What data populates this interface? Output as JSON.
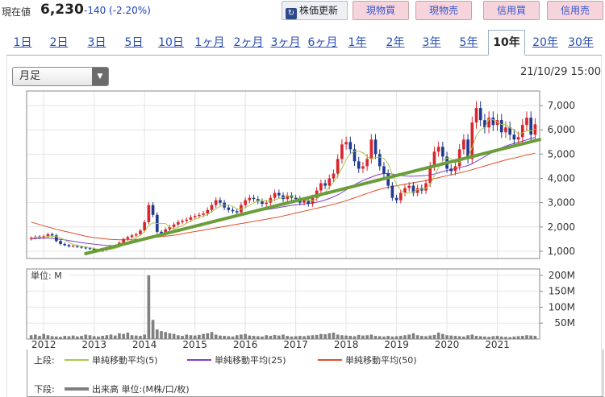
{
  "header": {
    "price_label": "現在値",
    "price_value": "6,230",
    "price_change": "-140 (-2.20%)",
    "refresh_label": "株価更新",
    "buttons": [
      "現物買",
      "現物売",
      "信用買",
      "信用売"
    ]
  },
  "tabs": [
    "1日",
    "2日",
    "3日",
    "5日",
    "10日",
    "1ヶ月",
    "2ヶ月",
    "3ヶ月",
    "6ヶ月",
    "1年",
    "2年",
    "3年",
    "5年",
    "10年",
    "20年",
    "30年"
  ],
  "active_tab": "10年",
  "period_select": "月足",
  "timestamp": "21/10/29 15:00",
  "colors": {
    "up": "#d8262e",
    "down": "#1f3a8f",
    "ma5": "#a8c84a",
    "ma25": "#7d3fc9",
    "ma50": "#e0502a",
    "trend": "#6a9e3a",
    "volume": "#808080"
  },
  "legend": {
    "upper_label": "上段:",
    "lower_label": "下段:",
    "ma5": "単純移動平均(5)",
    "ma25": "単純移動平均(25)",
    "ma50": "単純移動平均(50)",
    "volume": "出来高 単位:(M株/口/枚)"
  },
  "volume_unit_label": "単位: M",
  "chart_data": {
    "type": "candlestick",
    "x_labels": [
      "2012",
      "2013",
      "2014",
      "2015",
      "2016",
      "2017",
      "2018",
      "2019",
      "2020",
      "2021"
    ],
    "price_ticks": [
      "1,000",
      "2,000",
      "3,000",
      "4,000",
      "5,000",
      "6,000",
      "7,000"
    ],
    "price_range": [
      700,
      7600
    ],
    "volume_ticks": [
      "50M",
      "100M",
      "150M",
      "200M"
    ],
    "volume_range": [
      0,
      220
    ],
    "months_from": "2011-10",
    "closes": [
      1550,
      1600,
      1560,
      1620,
      1700,
      1650,
      1420,
      1300,
      1250,
      1200,
      1220,
      1180,
      1150,
      1120,
      1100,
      1050,
      1000,
      1050,
      1100,
      1180,
      1200,
      1350,
      1500,
      1580,
      1650,
      1700,
      1850,
      2200,
      2900,
      2500,
      1800,
      1700,
      1900,
      2000,
      2100,
      2200,
      2250,
      2300,
      2400,
      2450,
      2500,
      2550,
      2700,
      2900,
      3100,
      3000,
      2800,
      2700,
      2650,
      2600,
      2900,
      3100,
      3200,
      3150,
      3050,
      2950,
      3000,
      3200,
      3400,
      3300,
      3150,
      3300,
      3200,
      3150,
      3000,
      3100,
      2950,
      3200,
      3500,
      3800,
      3700,
      4000,
      4200,
      4800,
      5400,
      5500,
      5200,
      4700,
      4400,
      4500,
      4800,
      5600,
      5000,
      4500,
      4200,
      3700,
      3200,
      3100,
      3400,
      3600,
      3700,
      3400,
      3600,
      3500,
      3800,
      4500,
      5100,
      5300,
      4900,
      4400,
      4300,
      4500,
      5200,
      5600,
      4800,
      6300,
      6900,
      6400,
      6100,
      6500,
      6200,
      6400,
      5900,
      6100,
      5800,
      5600,
      5700,
      6200,
      6500,
      5800,
      6230
    ],
    "volumes": [
      12,
      14,
      10,
      16,
      12,
      9,
      8,
      7,
      10,
      9,
      11,
      8,
      10,
      14,
      12,
      9,
      8,
      10,
      12,
      14,
      11,
      18,
      16,
      20,
      12,
      11,
      10,
      14,
      200,
      60,
      30,
      25,
      22,
      18,
      16,
      12,
      10,
      14,
      12,
      11,
      13,
      16,
      18,
      22,
      14,
      11,
      10,
      9,
      8,
      12,
      14,
      16,
      11,
      10,
      9,
      8,
      12,
      10,
      13,
      11,
      14,
      10,
      8,
      9,
      10,
      9,
      11,
      12,
      13,
      16,
      15,
      18,
      20,
      14,
      12,
      11,
      10,
      9,
      13,
      11,
      12,
      14,
      10,
      9,
      8,
      10,
      8,
      9,
      10,
      12,
      14,
      18,
      12,
      10,
      9,
      11,
      13,
      20,
      16,
      12,
      11,
      10,
      9,
      8,
      12,
      14,
      10,
      9,
      8,
      7,
      9,
      10,
      8,
      7,
      6,
      8,
      9,
      10,
      12,
      11,
      10
    ],
    "ma5": [
      1550,
      1580,
      1570,
      1580,
      1610,
      1630,
      1600,
      1550,
      1460,
      1360,
      1280,
      1230,
      1200,
      1170,
      1150,
      1110,
      1080,
      1060,
      1060,
      1080,
      1110,
      1180,
      1270,
      1360,
      1460,
      1560,
      1660,
      1800,
      2060,
      2170,
      2140,
      2140,
      2140,
      2000,
      1900,
      1980,
      2050,
      2150,
      2250,
      2320,
      2380,
      2440,
      2520,
      2620,
      2750,
      2850,
      2900,
      2900,
      2850,
      2750,
      2730,
      2790,
      2890,
      2990,
      3080,
      3090,
      3070,
      3070,
      3120,
      3170,
      3210,
      3270,
      3270,
      3220,
      3160,
      3150,
      3080,
      3080,
      3150,
      3290,
      3430,
      3640,
      3840,
      4100,
      4420,
      4780,
      5020,
      5120,
      5120,
      5060,
      4900,
      4800,
      4860,
      4880,
      4820,
      4600,
      4140,
      3740,
      3520,
      3400,
      3400,
      3440,
      3540,
      3560,
      3600,
      3760,
      4100,
      4440,
      4720,
      4840,
      4800,
      4680,
      4660,
      4840,
      4880,
      5280,
      5760,
      6000,
      6100,
      6440,
      6420,
      6320,
      6220,
      6220,
      6080,
      6000,
      5820,
      5880,
      5960,
      5960,
      6040
    ],
    "ma25": [
      1500,
      1520,
      1530,
      1540,
      1540,
      1530,
      1510,
      1490,
      1470,
      1440,
      1410,
      1380,
      1350,
      1330,
      1310,
      1290,
      1270,
      1250,
      1240,
      1230,
      1230,
      1240,
      1260,
      1290,
      1330,
      1370,
      1420,
      1480,
      1560,
      1620,
      1660,
      1690,
      1720,
      1750,
      1780,
      1820,
      1860,
      1900,
      1950,
      2000,
      2040,
      2080,
      2130,
      2180,
      2240,
      2290,
      2340,
      2380,
      2420,
      2460,
      2500,
      2540,
      2580,
      2620,
      2660,
      2690,
      2710,
      2740,
      2770,
      2800,
      2830,
      2860,
      2890,
      2910,
      2930,
      2950,
      2970,
      2990,
      3020,
      3060,
      3110,
      3170,
      3240,
      3320,
      3420,
      3530,
      3640,
      3740,
      3830,
      3910,
      3980,
      4050,
      4120,
      4170,
      4200,
      4200,
      4180,
      4150,
      4120,
      4100,
      4090,
      4090,
      4100,
      4110,
      4120,
      4140,
      4180,
      4230,
      4280,
      4330,
      4370,
      4400,
      4440,
      4490,
      4530,
      4600,
      4700,
      4800,
      4900,
      5000,
      5090,
      5180,
      5260,
      5330,
      5390,
      5440,
      5490,
      5540,
      5590,
      5640,
      5690
    ],
    "ma50": [
      2200,
      2150,
      2100,
      2050,
      2000,
      1950,
      1900,
      1860,
      1820,
      1780,
      1740,
      1700,
      1660,
      1620,
      1590,
      1560,
      1540,
      1520,
      1500,
      1490,
      1480,
      1470,
      1470,
      1470,
      1480,
      1490,
      1500,
      1520,
      1540,
      1560,
      1580,
      1600,
      1620,
      1640,
      1660,
      1690,
      1720,
      1750,
      1780,
      1810,
      1840,
      1870,
      1900,
      1930,
      1960,
      1990,
      2020,
      2050,
      2080,
      2110,
      2140,
      2170,
      2200,
      2230,
      2260,
      2290,
      2320,
      2350,
      2380,
      2410,
      2450,
      2490,
      2530,
      2570,
      2610,
      2650,
      2690,
      2730,
      2770,
      2810,
      2850,
      2890,
      2930,
      2980,
      3030,
      3080,
      3140,
      3200,
      3260,
      3320,
      3380,
      3440,
      3500,
      3550,
      3600,
      3640,
      3670,
      3700,
      3730,
      3760,
      3790,
      3820,
      3850,
      3880,
      3910,
      3950,
      3990,
      4030,
      4070,
      4110,
      4150,
      4190,
      4230,
      4270,
      4310,
      4360,
      4410,
      4460,
      4510,
      4560,
      4610,
      4660,
      4710,
      4760,
      4800,
      4840,
      4880,
      4920,
      4960,
      5000,
      5040
    ],
    "trend_line": {
      "from": [
        13,
        900
      ],
      "to": [
        125,
        5600
      ]
    }
  }
}
